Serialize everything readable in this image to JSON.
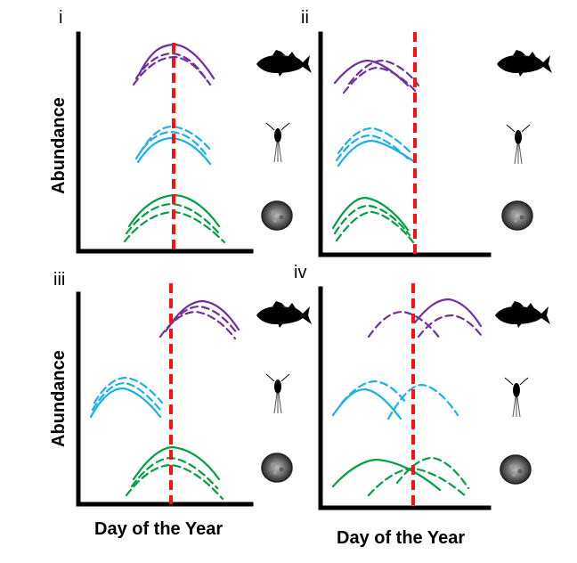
{
  "figure": {
    "panels": [
      {
        "id": "i",
        "label": "i"
      },
      {
        "id": "ii",
        "label": "ii"
      },
      {
        "id": "iii",
        "label": "iii"
      },
      {
        "id": "iv",
        "label": "iv"
      }
    ],
    "y_label": "Abundance",
    "x_label": "Day of the Year",
    "organisms": [
      {
        "name": "fish",
        "color": "#7030a0"
      },
      {
        "name": "zooplankton",
        "color": "#1cb0e8"
      },
      {
        "name": "phytoplankton",
        "color": "#00a040"
      }
    ],
    "marker_color": "#ff1010"
  }
}
